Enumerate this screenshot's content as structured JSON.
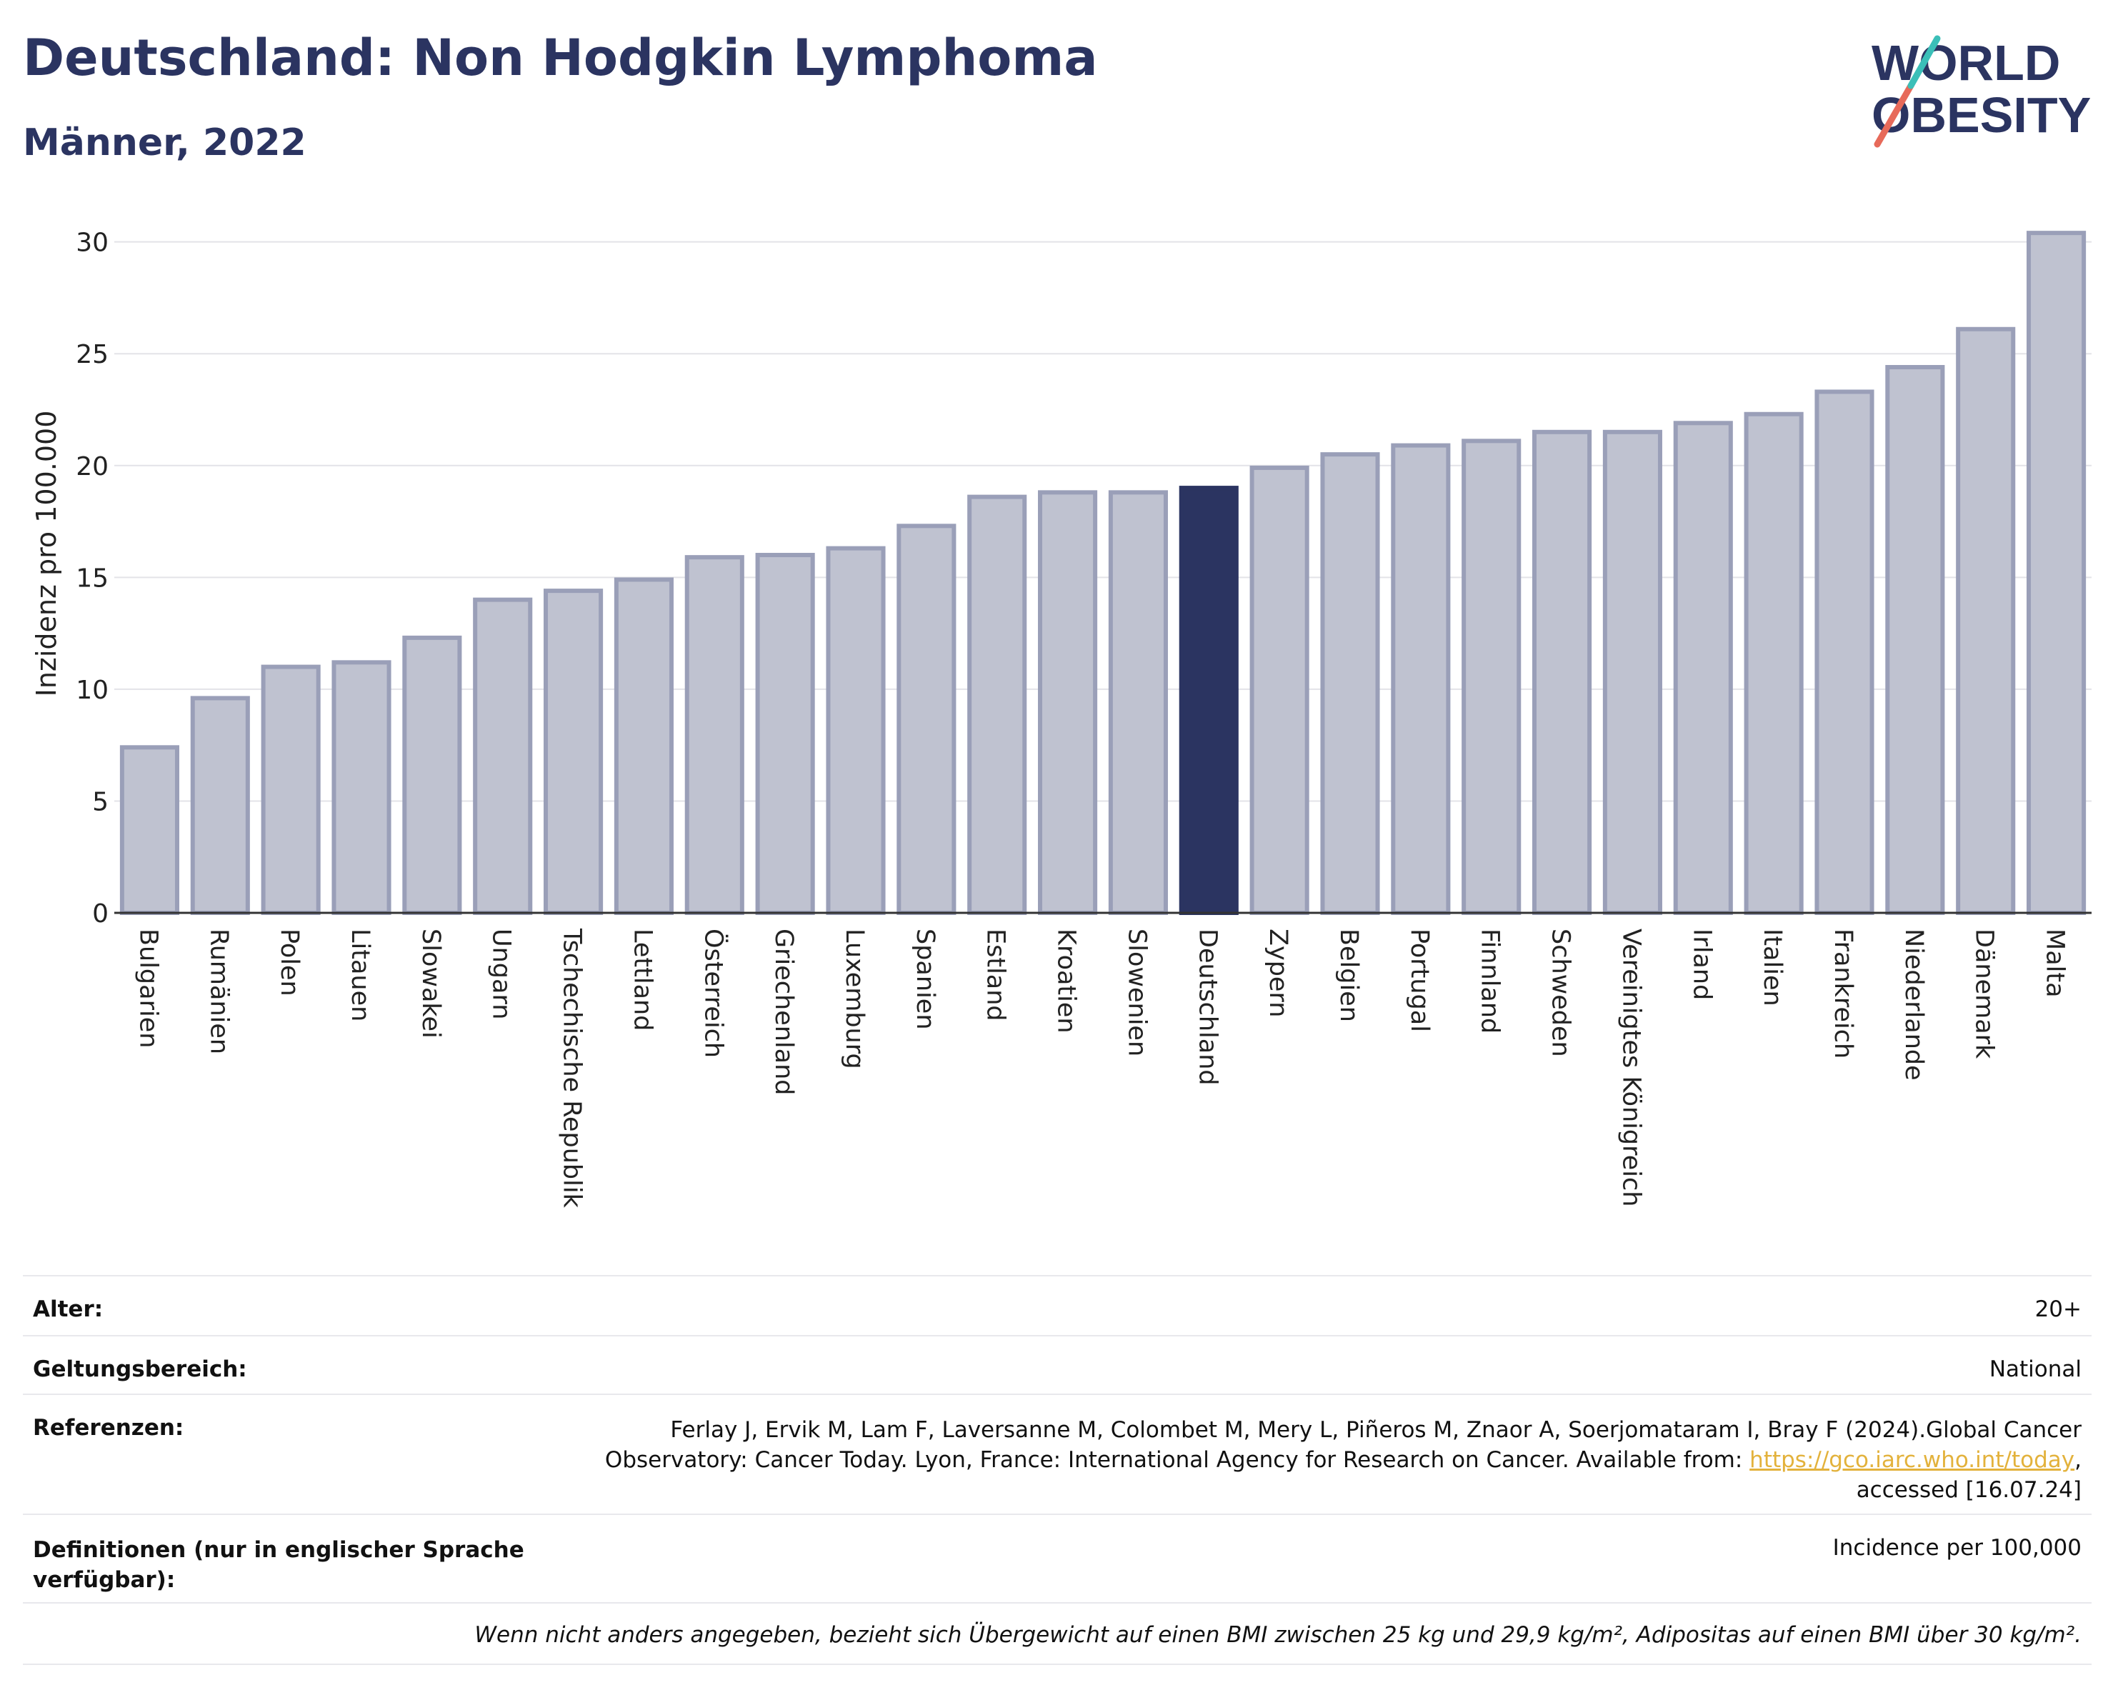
{
  "header": {
    "title": "Deutschland: Non Hodgkin Lymphoma",
    "subtitle": "Männer, 2022"
  },
  "logo": {
    "line1": "WORLD",
    "line2": "OBESITY"
  },
  "colors": {
    "bar": "#bfc2d0",
    "bar_stroke": "#9a9fb8",
    "highlight": "#2b3461",
    "text": "#2b3461",
    "grid": "#e3e3e8",
    "link": "#e3b23c",
    "logo_slash_red": "#e76a5a",
    "logo_slash_teal": "#3bbfb8"
  },
  "chart_data": {
    "type": "bar",
    "ylabel": "Inzidenz pro 100.000",
    "xlabel": "",
    "ylim": [
      0,
      30.5
    ],
    "yticks": [
      0,
      5,
      10,
      15,
      20,
      25,
      30
    ],
    "grid": true,
    "highlight": "Deutschland",
    "categories": [
      "Bulgarien",
      "Rumänien",
      "Polen",
      "Litauen",
      "Slowakei",
      "Ungarn",
      "Tschechische Republik",
      "Lettland",
      "Österreich",
      "Griechenland",
      "Luxemburg",
      "Spanien",
      "Estland",
      "Kroatien",
      "Slowenien",
      "Deutschland",
      "Zypern",
      "Belgien",
      "Portugal",
      "Finnland",
      "Schweden",
      "Vereinigtes Königreich",
      "Irland",
      "Italien",
      "Frankreich",
      "Niederlande",
      "Dänemark",
      "Malta"
    ],
    "values": [
      7.4,
      9.6,
      11.0,
      11.2,
      12.3,
      14.0,
      14.4,
      14.9,
      15.9,
      16.0,
      16.3,
      17.3,
      18.6,
      18.8,
      18.8,
      19.0,
      19.9,
      20.5,
      20.9,
      21.1,
      21.5,
      21.5,
      21.9,
      22.3,
      23.3,
      24.4,
      26.1,
      30.4
    ]
  },
  "meta": {
    "age_label": "Alter:",
    "age_value": "20+",
    "scope_label": "Geltungsbereich:",
    "scope_value": "National",
    "ref_label": "Referenzen:",
    "ref_line1": "Ferlay J, Ervik M, Lam F, Laversanne M, Colombet M, Mery L, Piñeros M, Znaor A, Soerjomataram I, Bray F (2024).Global Cancer",
    "ref_line2_text": "Observatory: Cancer Today. Lyon, France: International Agency for Research on Cancer. Available from: ",
    "ref_link": "https://gco.iarc.who.int/today",
    "ref_line2_end": ",",
    "ref_line3": "accessed [16.07.24]",
    "def_label_1": "Definitionen (nur in englischer Sprache",
    "def_label_2": "verfügbar):",
    "def_value": "Incidence per 100,000",
    "note": "Wenn nicht anders angegeben, bezieht sich Übergewicht auf einen BMI zwischen 25 kg und 29,9 kg/m², Adipositas auf einen BMI über 30 kg/m²."
  }
}
